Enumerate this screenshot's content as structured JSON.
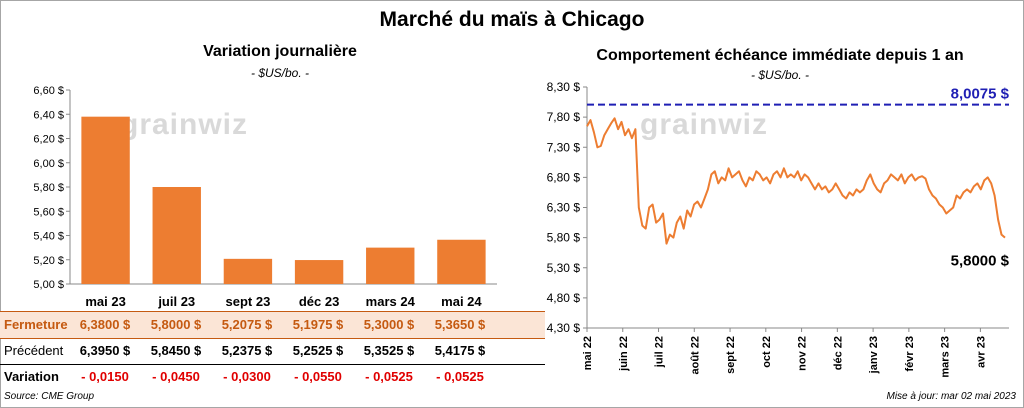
{
  "title": "Marché du maïs à Chicago",
  "left_chart": {
    "title": "Variation  journalière",
    "unit": "- $US/bo. -"
  },
  "right_chart": {
    "title": "Comportement  échéance immédiate depuis 1 an",
    "unit": "- $US/bo. -"
  },
  "table": {
    "rows": [
      {
        "label": "Fermeture",
        "values": [
          "6,3800  $",
          "5,8000  $",
          "5,2075  $",
          "5,1975  $",
          "5,3000  $",
          "5,3650  $"
        ]
      },
      {
        "label": "Précédent",
        "values": [
          "6,3950  $",
          "5,8450  $",
          "5,2375  $",
          "5,2525  $",
          "5,3525  $",
          "5,4175  $"
        ]
      },
      {
        "label": "Variation",
        "values": [
          "- 0,0150",
          "- 0,0450",
          "- 0,0300",
          "- 0,0550",
          "- 0,0525",
          "- 0,0525"
        ]
      }
    ]
  },
  "source": "Source: CME Group",
  "updated": "Mise à jour: mar 02 mai 2023",
  "watermark": "GRAINWIZ",
  "colors": {
    "bar": "#ed7d31",
    "line": "#ed7d31",
    "reference": "#1f1fb4",
    "negative": "#e00000",
    "highlight_row": "#fbe5d6"
  },
  "chart_data": [
    {
      "type": "bar",
      "title": "Variation  journalière",
      "ylabel": "- $US/bo. -",
      "categories": [
        "mai 23",
        "juil 23",
        "sept 23",
        "déc 23",
        "mars 24",
        "mai 24"
      ],
      "values": [
        6.38,
        5.8,
        5.2075,
        5.1975,
        5.3,
        5.365
      ],
      "ylim": [
        5.0,
        6.6
      ],
      "yticks": [
        "5,00 $",
        "5,20 $",
        "5,40 $",
        "5,60 $",
        "5,80 $",
        "6,00 $",
        "6,20 $",
        "6,40 $",
        "6,60 $"
      ],
      "grid": false
    },
    {
      "type": "line",
      "title": "Comportement  échéance immédiate depuis 1 an",
      "ylabel": "- $US/bo. -",
      "xticks": [
        "mai 22",
        "juin 22",
        "juil 22",
        "août 22",
        "sept 22",
        "oct 22",
        "nov 22",
        "déc 22",
        "janv 23",
        "févr 23",
        "mars 23",
        "avr 23"
      ],
      "ylim": [
        4.3,
        8.3
      ],
      "yticks": [
        "4,30 $",
        "4,80 $",
        "5,30 $",
        "5,80 $",
        "6,30 $",
        "6,80 $",
        "7,30 $",
        "7,80 $",
        "8,30 $"
      ],
      "reference_line": {
        "value": 8.0075,
        "label": "8,0075 $"
      },
      "last_label": "5,8000 $",
      "series": [
        {
          "values": [
            7.65,
            7.75,
            7.55,
            7.3,
            7.32,
            7.5,
            7.6,
            7.7,
            7.78,
            7.6,
            7.72,
            7.5,
            7.6,
            7.45,
            7.6,
            6.3,
            6.0,
            5.95,
            6.3,
            6.35,
            6.05,
            6.1,
            6.2,
            5.7,
            5.85,
            5.8,
            6.05,
            6.15,
            5.95,
            6.25,
            6.15,
            6.35,
            6.4,
            6.3,
            6.45,
            6.6,
            6.85,
            6.9,
            6.7,
            6.8,
            6.75,
            6.95,
            6.8,
            6.85,
            6.9,
            6.75,
            6.65,
            6.8,
            6.75,
            6.9,
            6.85,
            6.75,
            6.8,
            6.7,
            6.85,
            6.9,
            6.8,
            6.95,
            6.8,
            6.85,
            6.8,
            6.9,
            6.75,
            6.85,
            6.8,
            6.7,
            6.6,
            6.7,
            6.6,
            6.65,
            6.55,
            6.6,
            6.7,
            6.6,
            6.5,
            6.45,
            6.55,
            6.5,
            6.6,
            6.55,
            6.6,
            6.75,
            6.85,
            6.7,
            6.6,
            6.55,
            6.7,
            6.75,
            6.85,
            6.8,
            6.75,
            6.85,
            6.7,
            6.8,
            6.85,
            6.75,
            6.8,
            6.82,
            6.78,
            6.6,
            6.5,
            6.45,
            6.35,
            6.3,
            6.2,
            6.25,
            6.3,
            6.5,
            6.45,
            6.55,
            6.6,
            6.55,
            6.65,
            6.7,
            6.6,
            6.75,
            6.8,
            6.7,
            6.5,
            6.1,
            5.85,
            5.8
          ]
        }
      ]
    }
  ]
}
